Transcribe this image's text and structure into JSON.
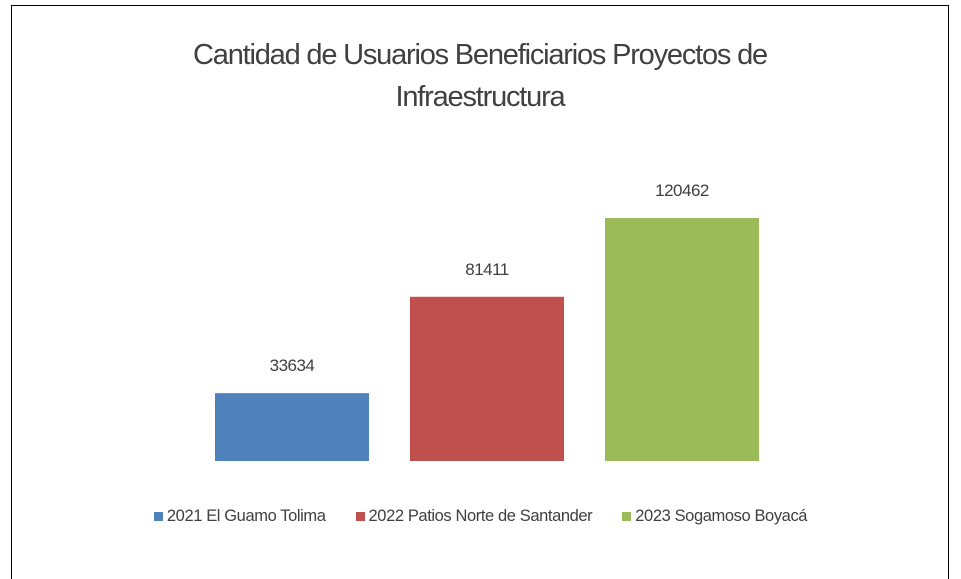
{
  "chart_data": {
    "type": "bar",
    "title": "Cantidad de Usuarios Beneficiarios Proyectos de Infraestructura",
    "series": [
      {
        "name": "2021 El Guamo Tolima",
        "color": "#4f81bd",
        "values": [
          33634
        ]
      },
      {
        "name": "2022 Patios Norte de Santander",
        "color": "#c0504d",
        "values": [
          81411
        ]
      },
      {
        "name": "2023 Sogamoso Boyacá",
        "color": "#9bbb59",
        "values": [
          120462
        ]
      }
    ],
    "legend": "bottom"
  }
}
